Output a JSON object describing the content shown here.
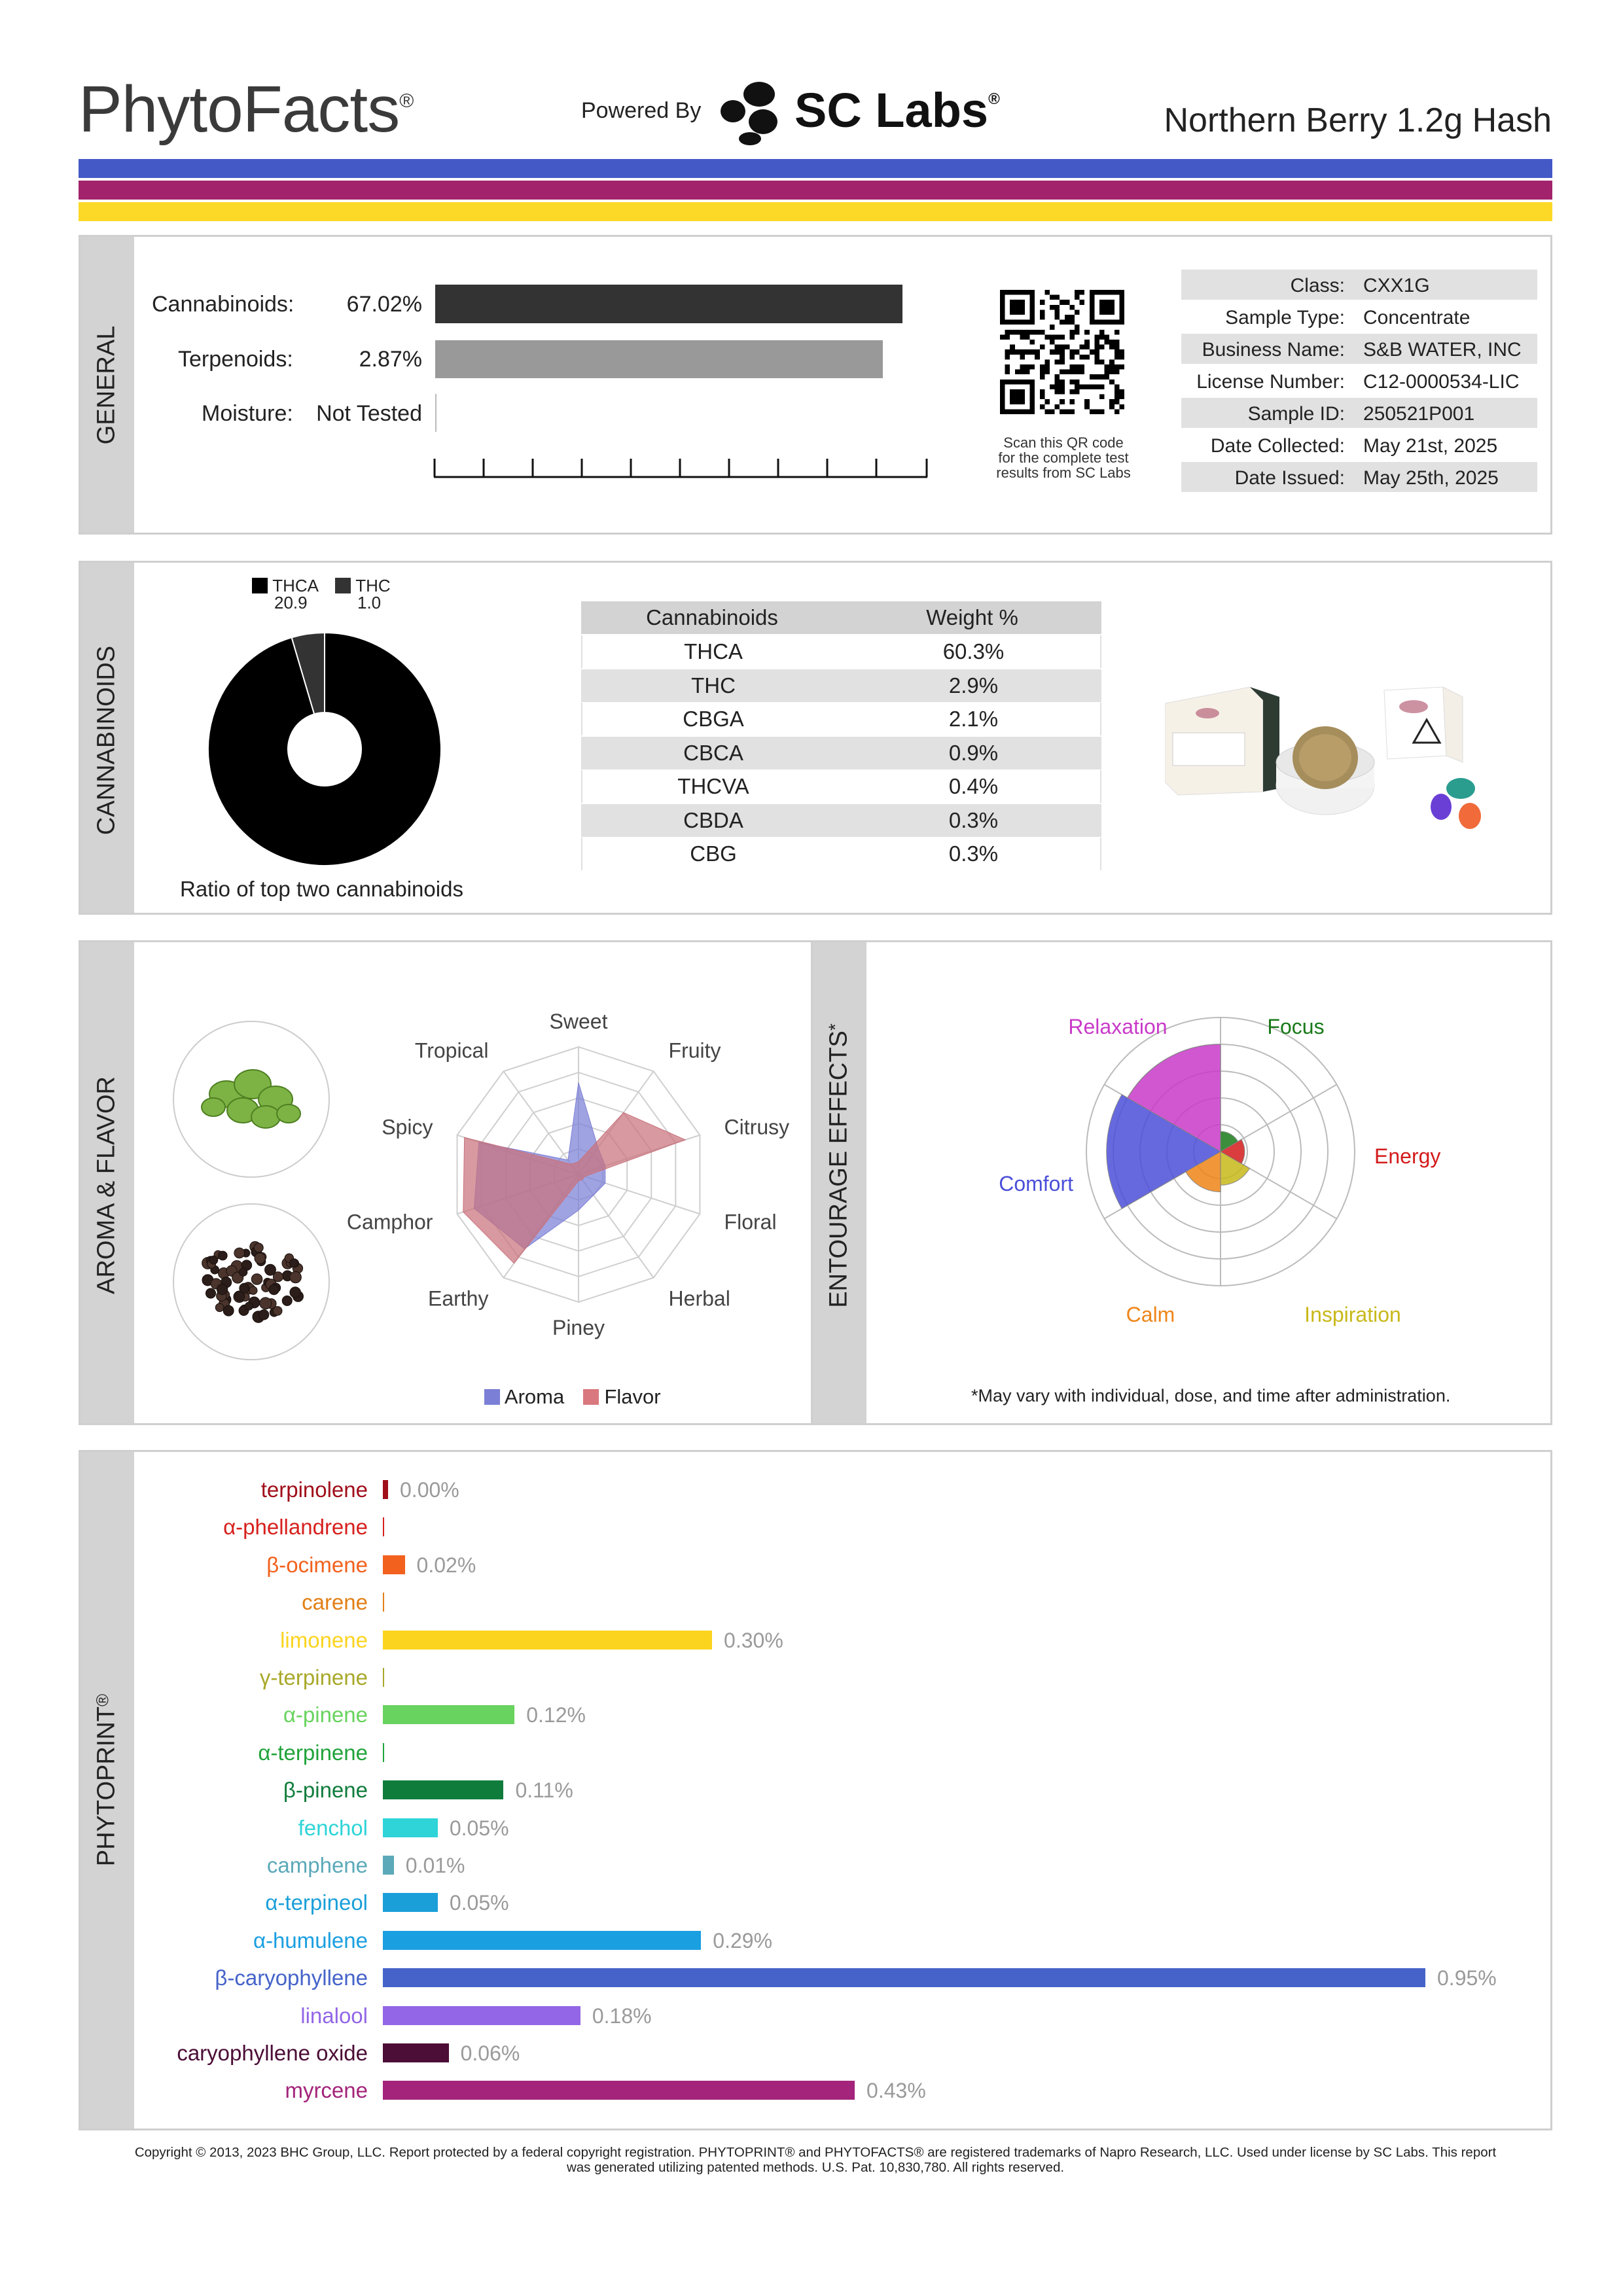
{
  "header": {
    "brand": "PhytoFacts",
    "brand_reg": "®",
    "powered_by": "Powered By",
    "lab_name": "SC Labs",
    "lab_reg": "®",
    "product": "Northern Berry 1.2g Hash",
    "stripe_colors": [
      "#4458c6",
      "#a2236b",
      "#fdd927"
    ]
  },
  "general": {
    "side_label": "GENERAL",
    "rows": [
      {
        "label": "Cannabinoids:",
        "value": "67.02%",
        "fraction": 0.6702
      },
      {
        "label": "Terpenoids:",
        "value": "2.87%",
        "fraction": 0.287
      },
      {
        "label": "Moisture:",
        "value": "Not Tested",
        "fraction": 0
      }
    ],
    "qr_caption_1": "Scan this QR code",
    "qr_caption_2": "for the complete test",
    "qr_caption_3": "results from SC Labs",
    "meta": [
      {
        "key": "Class:",
        "value": "CXX1G"
      },
      {
        "key": "Sample Type:",
        "value": "Concentrate"
      },
      {
        "key": "Business Name:",
        "value": "S&B WATER, INC"
      },
      {
        "key": "License Number:",
        "value": "C12-0000534-LIC"
      },
      {
        "key": "Sample ID:",
        "value": "250521P001"
      },
      {
        "key": "Date Collected:",
        "value": "May 21st, 2025"
      },
      {
        "key": "Date Issued:",
        "value": "May 25th, 2025"
      }
    ]
  },
  "cannabinoids": {
    "side_label": "CANNABINOIDS",
    "legend": [
      {
        "name": "THCA",
        "value": "20.9",
        "color": "#000000"
      },
      {
        "name": "THC",
        "value": "1.0",
        "color": "#333333"
      }
    ],
    "donut_caption": "Ratio of top two cannabinoids",
    "table_header": {
      "name": "Cannabinoids",
      "weight": "Weight %"
    },
    "rows": [
      {
        "name": "THCA",
        "weight": "60.3%"
      },
      {
        "name": "THC",
        "weight": "2.9%"
      },
      {
        "name": "CBGA",
        "weight": "2.1%"
      },
      {
        "name": "CBCA",
        "weight": "0.9%"
      },
      {
        "name": "THCVA",
        "weight": "0.4%"
      },
      {
        "name": "CBDA",
        "weight": "0.3%"
      },
      {
        "name": "CBG",
        "weight": "0.3%"
      }
    ]
  },
  "aroma": {
    "side_label": "AROMA & FLAVOR",
    "axes": [
      "Sweet",
      "Fruity",
      "Citrusy",
      "Floral",
      "Herbal",
      "Piney",
      "Earthy",
      "Camphor",
      "Spicy",
      "Tropical"
    ],
    "aroma_values": [
      0.72,
      0.26,
      0.22,
      0.22,
      0.2,
      0.28,
      0.72,
      0.86,
      0.82,
      0.14
    ],
    "flavor_values": [
      0.1,
      0.6,
      0.88,
      0.05,
      0.05,
      0.05,
      0.86,
      0.95,
      0.94,
      0.1
    ],
    "legend": [
      {
        "name": "Aroma",
        "color": "#7b7fd6"
      },
      {
        "name": "Flavor",
        "color": "#d9787e"
      }
    ]
  },
  "effects": {
    "side_label": "ENTOURAGE EFFECTS",
    "side_star": "*",
    "labels": [
      {
        "name": "Relaxation",
        "color": "#c93ac9"
      },
      {
        "name": "Focus",
        "color": "#1a7a1a"
      },
      {
        "name": "Energy",
        "color": "#d41b1b"
      },
      {
        "name": "Inspiration",
        "color": "#c8b81a"
      },
      {
        "name": "Calm",
        "color": "#ef8518"
      },
      {
        "name": "Comfort",
        "color": "#4b4fd8"
      }
    ],
    "values": [
      0.8,
      0.15,
      0.18,
      0.25,
      0.3,
      0.85
    ],
    "footnote": "*May vary with individual, dose, and time after administration."
  },
  "phytoprint": {
    "side_label": "PHYTOPRINT",
    "side_reg": "®",
    "max": 0.95,
    "terpenes": [
      {
        "name": "terpinolene",
        "value": 0.0,
        "label": "0.00%",
        "color": "#a00f1a",
        "show": true
      },
      {
        "name": "α-phellandrene",
        "value": 0.0,
        "label": "",
        "color": "#d6211e",
        "show": false
      },
      {
        "name": "β-ocimene",
        "value": 0.02,
        "label": "0.02%",
        "color": "#f2611d",
        "show": true
      },
      {
        "name": "carene",
        "value": 0.0,
        "label": "",
        "color": "#e27f16",
        "show": false
      },
      {
        "name": "limonene",
        "value": 0.3,
        "label": "0.30%",
        "color": "#fbd41f",
        "show": true
      },
      {
        "name": "γ-terpinene",
        "value": 0.0,
        "label": "",
        "color": "#a9a82a",
        "show": false
      },
      {
        "name": "α-pinene",
        "value": 0.12,
        "label": "0.12%",
        "color": "#68d35e",
        "show": true
      },
      {
        "name": "α-terpinene",
        "value": 0.0,
        "label": "",
        "color": "#21a33b",
        "show": false
      },
      {
        "name": "β-pinene",
        "value": 0.11,
        "label": "0.11%",
        "color": "#107c3c",
        "show": true
      },
      {
        "name": "fenchol",
        "value": 0.05,
        "label": "0.05%",
        "color": "#2ed4d8",
        "show": true
      },
      {
        "name": "camphene",
        "value": 0.01,
        "label": "0.01%",
        "color": "#5ca9b9",
        "show": true
      },
      {
        "name": "α-terpineol",
        "value": 0.05,
        "label": "0.05%",
        "color": "#1a9fd9",
        "show": true
      },
      {
        "name": "α-humulene",
        "value": 0.29,
        "label": "0.29%",
        "color": "#1a9fe0",
        "show": true
      },
      {
        "name": "β-caryophyllene",
        "value": 0.95,
        "label": "0.95%",
        "color": "#4563c9",
        "show": true
      },
      {
        "name": "linalool",
        "value": 0.18,
        "label": "0.18%",
        "color": "#9266e6",
        "show": true
      },
      {
        "name": "caryophyllene oxide",
        "value": 0.06,
        "label": "0.06%",
        "color": "#4c0d36",
        "show": true
      },
      {
        "name": "myrcene",
        "value": 0.43,
        "label": "0.43%",
        "color": "#a3247a",
        "show": true
      }
    ]
  },
  "footer": {
    "line1": "Copyright © 2013, 2023 BHC Group, LLC. Report protected by a federal copyright registration. PHYTOPRINT® and PHYTOFACTS® are registered trademarks of Napro Research, LLC. Used under license by SC Labs. This report",
    "line2": "was generated utilizing patented methods. U.S. Pat. 10,830,780. All rights reserved."
  }
}
